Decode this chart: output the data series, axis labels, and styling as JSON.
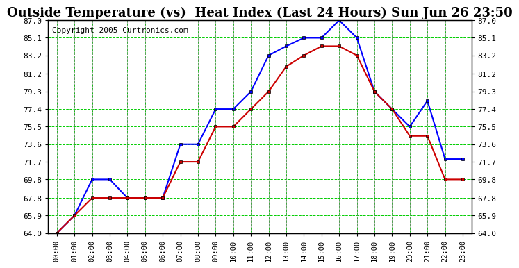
{
  "title": "Outside Temperature (vs)  Heat Index (Last 24 Hours) Sun Jun 26 23:50",
  "copyright": "Copyright 2005 Curtronics.com",
  "x_labels": [
    "00:00",
    "01:00",
    "02:00",
    "03:00",
    "04:00",
    "05:00",
    "06:00",
    "07:00",
    "08:00",
    "09:00",
    "10:00",
    "11:00",
    "12:00",
    "13:00",
    "14:00",
    "15:00",
    "16:00",
    "17:00",
    "18:00",
    "19:00",
    "20:00",
    "21:00",
    "22:00",
    "23:00"
  ],
  "blue_data": [
    64.0,
    65.9,
    69.8,
    69.8,
    67.8,
    67.8,
    67.8,
    73.6,
    73.6,
    77.4,
    77.4,
    79.3,
    83.2,
    84.2,
    85.1,
    85.1,
    87.0,
    85.1,
    79.3,
    77.4,
    75.5,
    78.3,
    72.0,
    72.0
  ],
  "red_data": [
    64.0,
    65.9,
    67.8,
    67.8,
    67.8,
    67.8,
    67.8,
    71.7,
    71.7,
    75.5,
    75.5,
    77.4,
    79.3,
    82.0,
    83.2,
    84.2,
    84.2,
    83.2,
    79.3,
    77.4,
    74.5,
    74.5,
    69.8,
    69.8
  ],
  "ylim": [
    64.0,
    87.0
  ],
  "yticks": [
    64.0,
    65.9,
    67.8,
    69.8,
    71.7,
    73.6,
    75.5,
    77.4,
    79.3,
    81.2,
    83.2,
    85.1,
    87.0
  ],
  "blue_color": "#0000ff",
  "red_color": "#cc0000",
  "bg_color": "#ffffff",
  "grid_color": "#00cc00",
  "title_fontsize": 13,
  "copyright_fontsize": 8
}
